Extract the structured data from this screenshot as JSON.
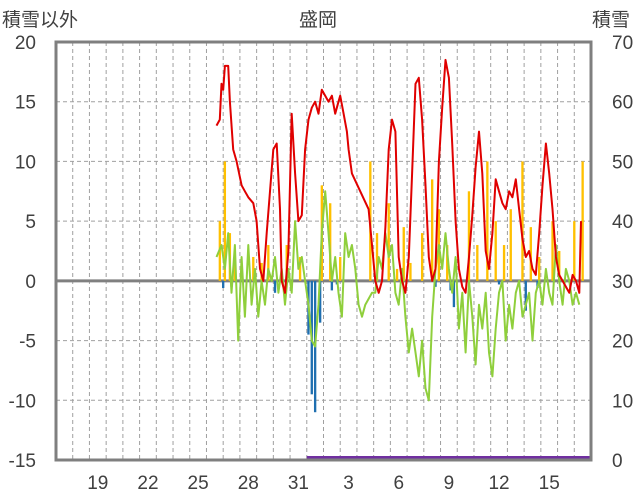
{
  "chart_data": {
    "title": "盛岡",
    "y_left": {
      "label": "積雪以外",
      "min": -15,
      "max": 20,
      "ticks": [
        20,
        15,
        10,
        5,
        0,
        -5,
        -10,
        -15
      ]
    },
    "y_right": {
      "label": "積雪",
      "min": 0,
      "max": 70,
      "ticks": [
        70,
        60,
        50,
        40,
        30,
        20,
        10,
        0
      ]
    },
    "x": {
      "start": 17,
      "days": 32,
      "tick_labels": [
        "19",
        "22",
        "25",
        "28",
        "31",
        "3",
        "6",
        "9",
        "12",
        "15"
      ],
      "tick_days": [
        2,
        5,
        8,
        11,
        14,
        17,
        20,
        23,
        26,
        29
      ]
    },
    "colors": {
      "snowfall": "#ffc000",
      "melt": "#1f6fb0",
      "temp": "#8fcf3c",
      "depth": "#e00000",
      "zero": "#808080",
      "grid": "#a0a0a0",
      "frame": "#7f7f7f",
      "depth_zero": "#7030a0"
    },
    "series": [
      {
        "kind": "bar",
        "axis": "left",
        "color_key": "snowfall",
        "values": [
          [
            9.3,
            5
          ],
          [
            9.6,
            10
          ],
          [
            9.9,
            4
          ],
          [
            10.2,
            1.5
          ],
          [
            11.3,
            2
          ],
          [
            11.8,
            1.5
          ],
          [
            12.2,
            3
          ],
          [
            13.3,
            3
          ],
          [
            14.1,
            2
          ],
          [
            15.4,
            8
          ],
          [
            15.9,
            6.5
          ],
          [
            16.5,
            2
          ],
          [
            18.3,
            10
          ],
          [
            18.7,
            4
          ],
          [
            19.4,
            6.5
          ],
          [
            19.9,
            1
          ],
          [
            20.3,
            4.5
          ],
          [
            20.7,
            1.5
          ],
          [
            21.4,
            4
          ],
          [
            22.0,
            8.5
          ],
          [
            22.4,
            6
          ],
          [
            22.9,
            3
          ],
          [
            24.2,
            7.5
          ],
          [
            24.7,
            3
          ],
          [
            25.3,
            10
          ],
          [
            25.8,
            5
          ],
          [
            26.3,
            3
          ],
          [
            26.7,
            6
          ],
          [
            27.4,
            10
          ],
          [
            27.9,
            4.5
          ],
          [
            28.4,
            2
          ],
          [
            29.2,
            5
          ],
          [
            29.6,
            2.5
          ],
          [
            30.5,
            5
          ],
          [
            31.0,
            10
          ]
        ]
      },
      {
        "kind": "bar",
        "axis": "left",
        "color_key": "melt",
        "values": [
          [
            9.5,
            -0.6
          ],
          [
            10.0,
            -0.5
          ],
          [
            12.6,
            -1.0
          ],
          [
            14.6,
            -4.5
          ],
          [
            14.8,
            -9.5
          ],
          [
            15.0,
            -11
          ],
          [
            15.3,
            -3.5
          ],
          [
            16.0,
            -0.8
          ],
          [
            16.3,
            -0.3
          ],
          [
            22.2,
            -0.5
          ],
          [
            23.1,
            -0.8
          ],
          [
            23.3,
            -2.2
          ],
          [
            26.0,
            -0.3
          ],
          [
            27.6,
            -2.5
          ],
          [
            28.3,
            -0.6
          ]
        ]
      },
      {
        "kind": "line",
        "axis": "left",
        "color_key": "temp",
        "values": [
          [
            9.1,
            2
          ],
          [
            9.4,
            3
          ],
          [
            9.6,
            1
          ],
          [
            9.8,
            4
          ],
          [
            10.0,
            -1
          ],
          [
            10.2,
            3
          ],
          [
            10.4,
            -5
          ],
          [
            10.6,
            2
          ],
          [
            10.8,
            -3
          ],
          [
            11.0,
            3
          ],
          [
            11.2,
            -2
          ],
          [
            11.4,
            1
          ],
          [
            11.6,
            -3
          ],
          [
            11.8,
            0
          ],
          [
            12.0,
            -2
          ],
          [
            12.2,
            1
          ],
          [
            12.4,
            0
          ],
          [
            12.6,
            2
          ],
          [
            12.8,
            -1
          ],
          [
            13.0,
            1
          ],
          [
            13.2,
            -2
          ],
          [
            13.4,
            1
          ],
          [
            13.6,
            -1
          ],
          [
            13.8,
            5
          ],
          [
            14.0,
            1
          ],
          [
            14.2,
            2
          ],
          [
            14.4,
            0
          ],
          [
            14.6,
            -2
          ],
          [
            14.8,
            -5
          ],
          [
            15.0,
            -5.5
          ],
          [
            15.2,
            -2
          ],
          [
            15.4,
            4
          ],
          [
            15.6,
            7.5
          ],
          [
            15.8,
            4
          ],
          [
            16.0,
            0
          ],
          [
            16.2,
            2
          ],
          [
            16.4,
            -1
          ],
          [
            16.6,
            -3
          ],
          [
            16.8,
            4
          ],
          [
            17.0,
            2
          ],
          [
            17.2,
            3
          ],
          [
            17.4,
            1
          ],
          [
            17.6,
            -2
          ],
          [
            17.8,
            -3
          ],
          [
            18.0,
            -2
          ],
          [
            18.4,
            -1
          ],
          [
            18.6,
            -1
          ],
          [
            18.8,
            2
          ],
          [
            19.0,
            1
          ],
          [
            19.2,
            4
          ],
          [
            19.4,
            2
          ],
          [
            19.6,
            3
          ],
          [
            19.8,
            -1
          ],
          [
            20.0,
            -2
          ],
          [
            20.2,
            1
          ],
          [
            20.4,
            -3
          ],
          [
            20.6,
            -6
          ],
          [
            20.8,
            -4
          ],
          [
            21.0,
            -6
          ],
          [
            21.2,
            -8
          ],
          [
            21.4,
            -5
          ],
          [
            21.6,
            -9
          ],
          [
            21.8,
            -10
          ],
          [
            22.0,
            -3
          ],
          [
            22.2,
            1
          ],
          [
            22.4,
            3
          ],
          [
            22.6,
            1
          ],
          [
            22.8,
            4
          ],
          [
            23.0,
            1
          ],
          [
            23.2,
            -1
          ],
          [
            23.4,
            2
          ],
          [
            23.6,
            -4
          ],
          [
            23.8,
            -1
          ],
          [
            24.0,
            -6
          ],
          [
            24.2,
            0
          ],
          [
            24.4,
            -3
          ],
          [
            24.6,
            -7
          ],
          [
            24.8,
            -2
          ],
          [
            25.0,
            -4
          ],
          [
            25.2,
            -1
          ],
          [
            25.4,
            -6
          ],
          [
            25.6,
            -8
          ],
          [
            25.8,
            -4
          ],
          [
            26.0,
            -1
          ],
          [
            26.2,
            0
          ],
          [
            26.4,
            -5
          ],
          [
            26.6,
            -2
          ],
          [
            26.8,
            -4
          ],
          [
            27.0,
            -1
          ],
          [
            27.2,
            0
          ],
          [
            27.4,
            -3
          ],
          [
            27.6,
            -2
          ],
          [
            27.8,
            -1
          ],
          [
            28.0,
            -5
          ],
          [
            28.2,
            -1
          ],
          [
            28.4,
            0
          ],
          [
            28.6,
            -2
          ],
          [
            28.8,
            1
          ],
          [
            29.0,
            -1
          ],
          [
            29.2,
            -2
          ],
          [
            29.4,
            3
          ],
          [
            29.6,
            0
          ],
          [
            29.8,
            -2
          ],
          [
            30.0,
            1
          ],
          [
            30.2,
            0
          ],
          [
            30.4,
            -2
          ],
          [
            30.6,
            -1
          ],
          [
            30.8,
            -2
          ]
        ]
      },
      {
        "kind": "line",
        "axis": "right",
        "color_key": "depth",
        "values": [
          [
            9.1,
            56
          ],
          [
            9.3,
            57
          ],
          [
            9.4,
            63
          ],
          [
            9.5,
            62
          ],
          [
            9.6,
            66
          ],
          [
            9.8,
            66
          ],
          [
            9.9,
            60
          ],
          [
            10.1,
            52
          ],
          [
            10.3,
            50
          ],
          [
            10.6,
            46
          ],
          [
            10.8,
            45
          ],
          [
            11.0,
            44
          ],
          [
            11.3,
            43
          ],
          [
            11.5,
            40
          ],
          [
            11.7,
            32
          ],
          [
            11.9,
            30
          ],
          [
            12.1,
            38
          ],
          [
            12.3,
            45
          ],
          [
            12.5,
            52
          ],
          [
            12.7,
            53
          ],
          [
            12.9,
            42
          ],
          [
            13.0,
            30
          ],
          [
            13.2,
            28
          ],
          [
            13.4,
            35
          ],
          [
            13.6,
            58
          ],
          [
            13.8,
            48
          ],
          [
            14.0,
            40
          ],
          [
            14.2,
            41
          ],
          [
            14.4,
            52
          ],
          [
            14.6,
            57
          ],
          [
            14.8,
            59
          ],
          [
            15.0,
            60
          ],
          [
            15.2,
            58
          ],
          [
            15.4,
            62
          ],
          [
            15.6,
            61
          ],
          [
            15.8,
            60
          ],
          [
            16.0,
            61
          ],
          [
            16.2,
            58
          ],
          [
            16.4,
            60
          ],
          [
            16.5,
            61
          ],
          [
            16.7,
            58
          ],
          [
            16.9,
            55
          ],
          [
            17.0,
            52
          ],
          [
            17.2,
            48
          ],
          [
            18.2,
            42
          ],
          [
            18.4,
            36
          ],
          [
            18.6,
            30
          ],
          [
            18.8,
            28
          ],
          [
            19.0,
            30
          ],
          [
            19.2,
            39
          ],
          [
            19.4,
            52
          ],
          [
            19.6,
            57
          ],
          [
            19.8,
            55
          ],
          [
            20.0,
            34
          ],
          [
            20.2,
            30
          ],
          [
            20.4,
            28
          ],
          [
            20.6,
            34
          ],
          [
            20.8,
            48
          ],
          [
            21.0,
            63
          ],
          [
            21.2,
            64
          ],
          [
            21.4,
            57
          ],
          [
            21.6,
            46
          ],
          [
            21.8,
            34
          ],
          [
            22.0,
            30
          ],
          [
            22.2,
            32
          ],
          [
            22.4,
            50
          ],
          [
            22.6,
            59
          ],
          [
            22.8,
            67
          ],
          [
            23.0,
            64
          ],
          [
            23.2,
            53
          ],
          [
            23.4,
            40
          ],
          [
            23.6,
            32
          ],
          [
            23.8,
            29
          ],
          [
            24.0,
            28
          ],
          [
            24.2,
            34
          ],
          [
            24.4,
            41
          ],
          [
            24.6,
            49
          ],
          [
            24.8,
            55
          ],
          [
            25.0,
            48
          ],
          [
            25.2,
            35
          ],
          [
            25.4,
            32
          ],
          [
            25.6,
            38
          ],
          [
            25.8,
            47
          ],
          [
            26.0,
            45
          ],
          [
            26.2,
            43
          ],
          [
            26.4,
            42
          ],
          [
            26.6,
            45
          ],
          [
            26.8,
            44
          ],
          [
            27.0,
            47
          ],
          [
            27.2,
            42
          ],
          [
            27.4,
            37
          ],
          [
            27.6,
            34
          ],
          [
            27.8,
            35
          ],
          [
            28.0,
            32
          ],
          [
            28.2,
            31
          ],
          [
            28.4,
            38
          ],
          [
            28.6,
            46
          ],
          [
            28.8,
            53
          ],
          [
            29.0,
            48
          ],
          [
            29.2,
            42
          ],
          [
            29.4,
            34
          ],
          [
            29.6,
            31
          ],
          [
            29.8,
            30
          ],
          [
            30.0,
            29
          ],
          [
            30.2,
            28
          ],
          [
            30.4,
            31
          ],
          [
            30.6,
            30
          ],
          [
            30.8,
            28
          ],
          [
            30.9,
            40
          ]
        ]
      }
    ]
  }
}
